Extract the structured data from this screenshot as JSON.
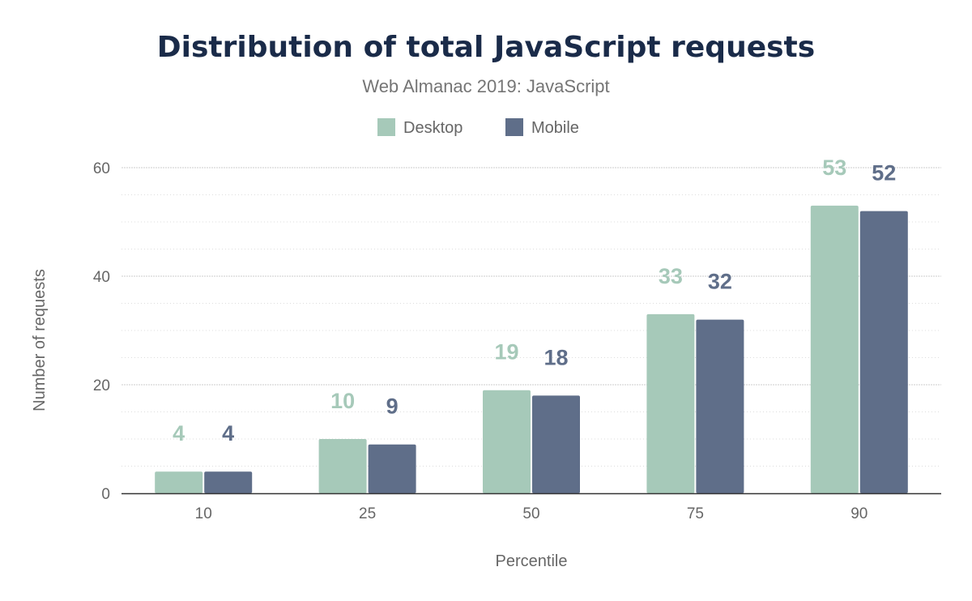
{
  "chart_data": {
    "type": "bar",
    "title": "Distribution of total JavaScript requests",
    "subtitle": "Web Almanac 2019: JavaScript",
    "xlabel": "Percentile",
    "ylabel": "Number of requests",
    "categories": [
      "10",
      "25",
      "50",
      "75",
      "90"
    ],
    "series": [
      {
        "name": "Desktop",
        "values": [
          4,
          10,
          19,
          33,
          53
        ],
        "color": "#a6c9b9"
      },
      {
        "name": "Mobile",
        "values": [
          4,
          9,
          18,
          32,
          52
        ],
        "color": "#5f6e89"
      }
    ],
    "ylim": [
      0,
      60
    ],
    "yticks": [
      0,
      20,
      40,
      60
    ],
    "grid": true,
    "legend": "top-center",
    "data_labels": true
  }
}
